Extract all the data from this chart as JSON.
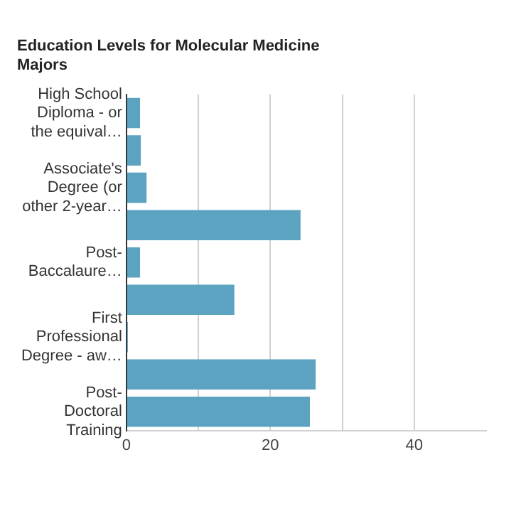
{
  "chart_data": {
    "type": "bar",
    "orientation": "horizontal",
    "title": "Education Levels for Molecular Medicine Majors",
    "categories": [
      "High School Diploma - or the equival…",
      null,
      "Associate's Degree (or other 2-year…",
      null,
      "Post-Baccalaure…",
      null,
      "First Professional Degree - aw…",
      null,
      "Post-Doctoral Training"
    ],
    "values": [
      1.9,
      2,
      2.8,
      24.2,
      1.9,
      15,
      0.2,
      26.3,
      25.5
    ],
    "color": "#5ba3c1",
    "xlim": [
      0,
      50
    ],
    "xticks": [
      0,
      {
        "value": 10,
        "label": null
      },
      20,
      {
        "value": 30,
        "label": null
      },
      40
    ],
    "grid": "x",
    "legend": false
  }
}
